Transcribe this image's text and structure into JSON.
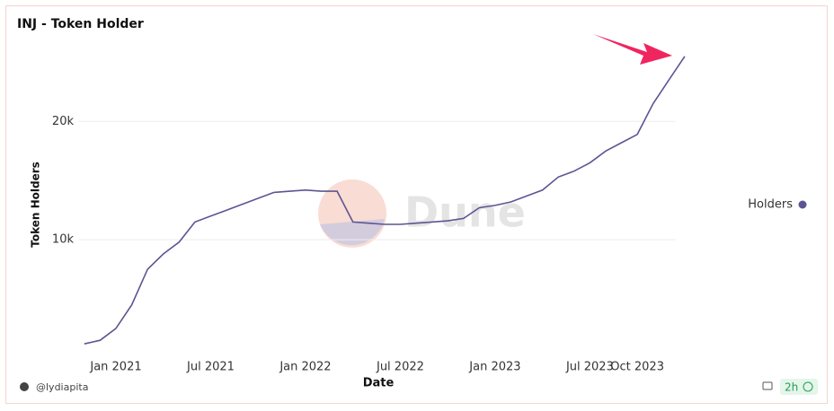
{
  "chart_data": {
    "type": "line",
    "title": "INJ - Token Holder",
    "x_label": "Date",
    "y_label": "Token Holders",
    "watermark": "Dune",
    "author": "@lydiapita",
    "refresh": "2h",
    "x": [
      "2020-11",
      "2020-12",
      "2021-01",
      "2021-02",
      "2021-03",
      "2021-04",
      "2021-05",
      "2021-06",
      "2021-07",
      "2021-08",
      "2021-09",
      "2021-10",
      "2021-11",
      "2021-12",
      "2022-01",
      "2022-02",
      "2022-03",
      "2022-04",
      "2022-05",
      "2022-06",
      "2022-07",
      "2022-08",
      "2022-09",
      "2022-10",
      "2022-11",
      "2022-12",
      "2023-01",
      "2023-02",
      "2023-03",
      "2023-04",
      "2023-05",
      "2023-06",
      "2023-07",
      "2023-08",
      "2023-09",
      "2023-10",
      "2023-11",
      "2023-12",
      "2024-01"
    ],
    "series": [
      {
        "name": "Holders",
        "color": "#5b5593",
        "values": [
          1200,
          1500,
          2500,
          4500,
          7500,
          8800,
          9800,
          11500,
          12000,
          12500,
          13000,
          13500,
          14000,
          14100,
          14200,
          14100,
          14100,
          11500,
          11400,
          11300,
          11300,
          11400,
          11500,
          11600,
          11800,
          12700,
          12900,
          13200,
          13700,
          14200,
          15300,
          15800,
          16500,
          17500,
          18200,
          18900,
          21500,
          23500,
          25500
        ]
      }
    ],
    "xticks": [
      {
        "value": "2021-01",
        "label": "Jan 2021"
      },
      {
        "value": "2021-07",
        "label": "Jul 2021"
      },
      {
        "value": "2022-01",
        "label": "Jan 2022"
      },
      {
        "value": "2022-07",
        "label": "Jul 2022"
      },
      {
        "value": "2023-01",
        "label": "Jan 2023"
      },
      {
        "value": "2023-07",
        "label": "Jul 2023"
      },
      {
        "value": "2023-10",
        "label": "Oct 2023"
      }
    ],
    "ylim": [
      0,
      27000
    ],
    "yticks": [
      {
        "value": 10000,
        "label": "10k"
      },
      {
        "value": 20000,
        "label": "20k"
      }
    ],
    "grid": true,
    "legend": "right"
  }
}
